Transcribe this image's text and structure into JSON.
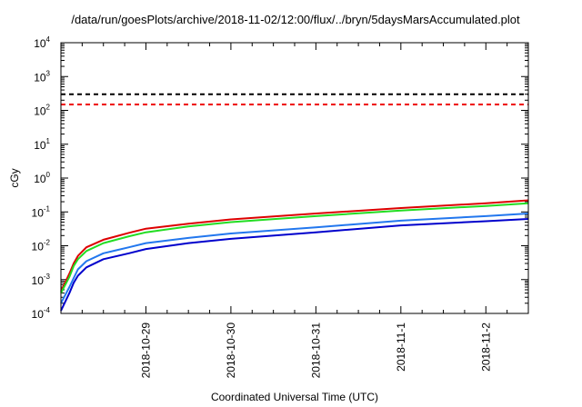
{
  "chart_data": {
    "type": "line",
    "title": "/data/run/goesPlots/archive/2018-11-02/12:00/flux/../bryn/5daysMarsAccumulated.plot",
    "xlabel": "Coordinated Universal Time (UTC)",
    "ylabel": "cGy",
    "yscale": "log",
    "ylim": [
      0.0001,
      10000
    ],
    "y_ticks": [
      {
        "value": 0.0001,
        "base": "10",
        "exp": "-4"
      },
      {
        "value": 0.001,
        "base": "10",
        "exp": "-3"
      },
      {
        "value": 0.01,
        "base": "10",
        "exp": "-2"
      },
      {
        "value": 0.1,
        "base": "10",
        "exp": "-1"
      },
      {
        "value": 1,
        "base": "10",
        "exp": "0"
      },
      {
        "value": 10,
        "base": "10",
        "exp": "1"
      },
      {
        "value": 100,
        "base": "10",
        "exp": "2"
      },
      {
        "value": 1000,
        "base": "10",
        "exp": "3"
      },
      {
        "value": 10000,
        "base": "10",
        "exp": "4"
      }
    ],
    "xlim": [
      "2018-10-28T00:00",
      "2018-11-02T12:00"
    ],
    "x_ticks": [
      "2018-10-29",
      "2018-10-30",
      "2018-10-31",
      "2018-11-1",
      "2018-11-2"
    ],
    "x_tick_dates": [
      "2018-10-29T00:00",
      "2018-10-30T00:00",
      "2018-10-31T00:00",
      "2018-11-01T00:00",
      "2018-11-02T00:00"
    ],
    "grid": false,
    "legend": "none",
    "series": [
      {
        "color": "#dd0000",
        "x": [
          "2018-10-28T00:00",
          "2018-10-28T02:24",
          "2018-10-28T03:36",
          "2018-10-28T04:48",
          "2018-10-28T07:12",
          "2018-10-28T12:00",
          "2018-10-28T19:12",
          "2018-10-29T00:00",
          "2018-10-29T12:00",
          "2018-10-30T00:00",
          "2018-10-31T00:00",
          "2018-11-01T00:00",
          "2018-11-02T00:00",
          "2018-11-02T12:00"
        ],
        "values": [
          0.00045,
          0.0015,
          0.003,
          0.005,
          0.009,
          0.015,
          0.024,
          0.032,
          0.045,
          0.06,
          0.09,
          0.13,
          0.18,
          0.22
        ]
      },
      {
        "color": "#22dd22",
        "x": [
          "2018-10-28T00:00",
          "2018-10-28T02:24",
          "2018-10-28T03:36",
          "2018-10-28T04:48",
          "2018-10-28T07:12",
          "2018-10-28T12:00",
          "2018-10-28T19:12",
          "2018-10-29T00:00",
          "2018-10-29T12:00",
          "2018-10-30T00:00",
          "2018-10-31T00:00",
          "2018-11-01T00:00",
          "2018-11-02T00:00",
          "2018-11-02T12:00"
        ],
        "values": [
          0.0004,
          0.0012,
          0.0025,
          0.004,
          0.007,
          0.012,
          0.019,
          0.025,
          0.037,
          0.05,
          0.075,
          0.11,
          0.15,
          0.18
        ]
      },
      {
        "color": "#2277ee",
        "x": [
          "2018-10-28T00:00",
          "2018-10-28T02:24",
          "2018-10-28T03:36",
          "2018-10-28T04:48",
          "2018-10-28T07:12",
          "2018-10-28T12:00",
          "2018-10-28T19:12",
          "2018-10-29T00:00",
          "2018-10-29T12:00",
          "2018-10-30T00:00",
          "2018-10-31T00:00",
          "2018-11-01T00:00",
          "2018-11-02T00:00",
          "2018-11-02T12:00"
        ],
        "values": [
          0.0002,
          0.0006,
          0.0011,
          0.002,
          0.0035,
          0.006,
          0.009,
          0.012,
          0.017,
          0.023,
          0.035,
          0.055,
          0.075,
          0.09
        ]
      },
      {
        "color": "#0000cc",
        "x": [
          "2018-10-28T00:00",
          "2018-10-28T02:24",
          "2018-10-28T03:36",
          "2018-10-28T04:48",
          "2018-10-28T07:12",
          "2018-10-28T12:00",
          "2018-10-28T19:12",
          "2018-10-29T00:00",
          "2018-10-29T12:00",
          "2018-10-30T00:00",
          "2018-10-31T00:00",
          "2018-11-01T00:00",
          "2018-11-02T00:00",
          "2018-11-02T12:00"
        ],
        "values": [
          0.00012,
          0.0004,
          0.0008,
          0.0013,
          0.0023,
          0.004,
          0.006,
          0.008,
          0.012,
          0.016,
          0.025,
          0.04,
          0.053,
          0.062
        ]
      }
    ],
    "reference_lines": [
      {
        "value": 300,
        "color": "#000000",
        "style": "dashed"
      },
      {
        "value": 150,
        "color": "#ee0000",
        "style": "dashed"
      }
    ]
  }
}
